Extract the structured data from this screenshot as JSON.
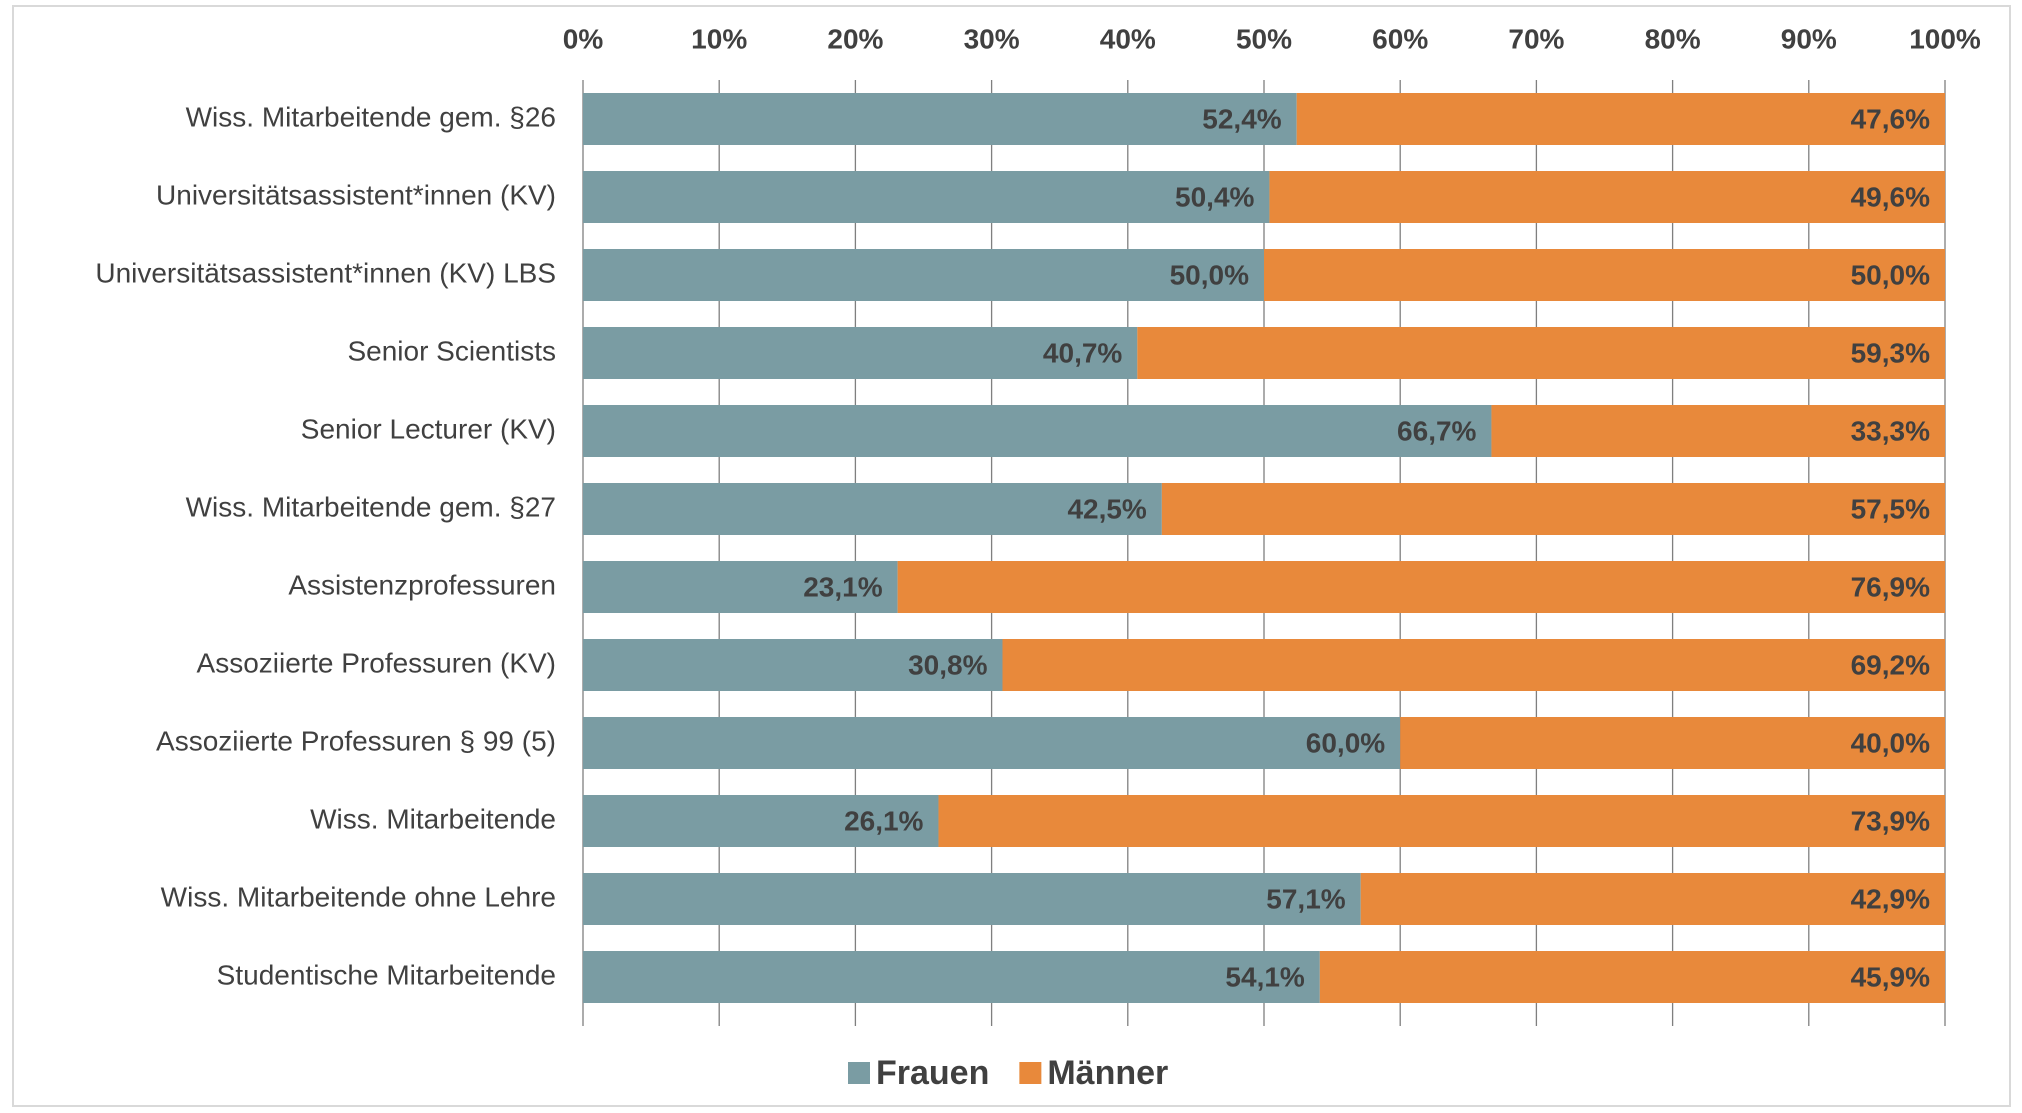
{
  "chart_data": {
    "type": "bar",
    "orientation": "horizontal",
    "stacked": true,
    "categories": [
      "Wiss. Mitarbeitende gem. §26",
      "Universitätsassistent*innen (KV)",
      "Universitätsassistent*innen (KV) LBS",
      "Senior Scientists",
      "Senior Lecturer (KV)",
      "Wiss. Mitarbeitende gem. §27",
      "Assistenzprofessuren",
      "Assoziierte Professuren (KV)",
      "Assoziierte Professuren § 99 (5)",
      "Wiss. Mitarbeitende",
      "Wiss. Mitarbeitende ohne Lehre",
      "Studentische Mitarbeitende"
    ],
    "series": [
      {
        "name": "Frauen",
        "color": "#7a9ca3",
        "values": [
          52.4,
          50.4,
          50.0,
          40.7,
          66.7,
          42.5,
          23.1,
          30.8,
          60.0,
          26.1,
          57.1,
          54.1
        ],
        "value_labels": [
          "52,4%",
          "50,4%",
          "50,0%",
          "40,7%",
          "66,7%",
          "42,5%",
          "23,1%",
          "30,8%",
          "60,0%",
          "26,1%",
          "57,1%",
          "54,1%"
        ]
      },
      {
        "name": "Männer",
        "color": "#e8893b",
        "values": [
          47.6,
          49.6,
          50.0,
          59.3,
          33.3,
          57.5,
          76.9,
          69.2,
          40.0,
          73.9,
          42.9,
          45.9
        ],
        "value_labels": [
          "47,6%",
          "49,6%",
          "50,0%",
          "59,3%",
          "33,3%",
          "57,5%",
          "76,9%",
          "69,2%",
          "40,0%",
          "73,9%",
          "42,9%",
          "45,9%"
        ]
      }
    ],
    "xlim": [
      0,
      100
    ],
    "xticks": [
      {
        "value": 0,
        "label": "0%"
      },
      {
        "value": 10,
        "label": "10%"
      },
      {
        "value": 20,
        "label": "20%"
      },
      {
        "value": 30,
        "label": "30%"
      },
      {
        "value": 40,
        "label": "40%"
      },
      {
        "value": 50,
        "label": "50%"
      },
      {
        "value": 60,
        "label": "60%"
      },
      {
        "value": 70,
        "label": "70%"
      },
      {
        "value": 80,
        "label": "80%"
      },
      {
        "value": 90,
        "label": "90%"
      },
      {
        "value": 100,
        "label": "100%"
      }
    ],
    "grid": true,
    "legend": "bottom"
  }
}
